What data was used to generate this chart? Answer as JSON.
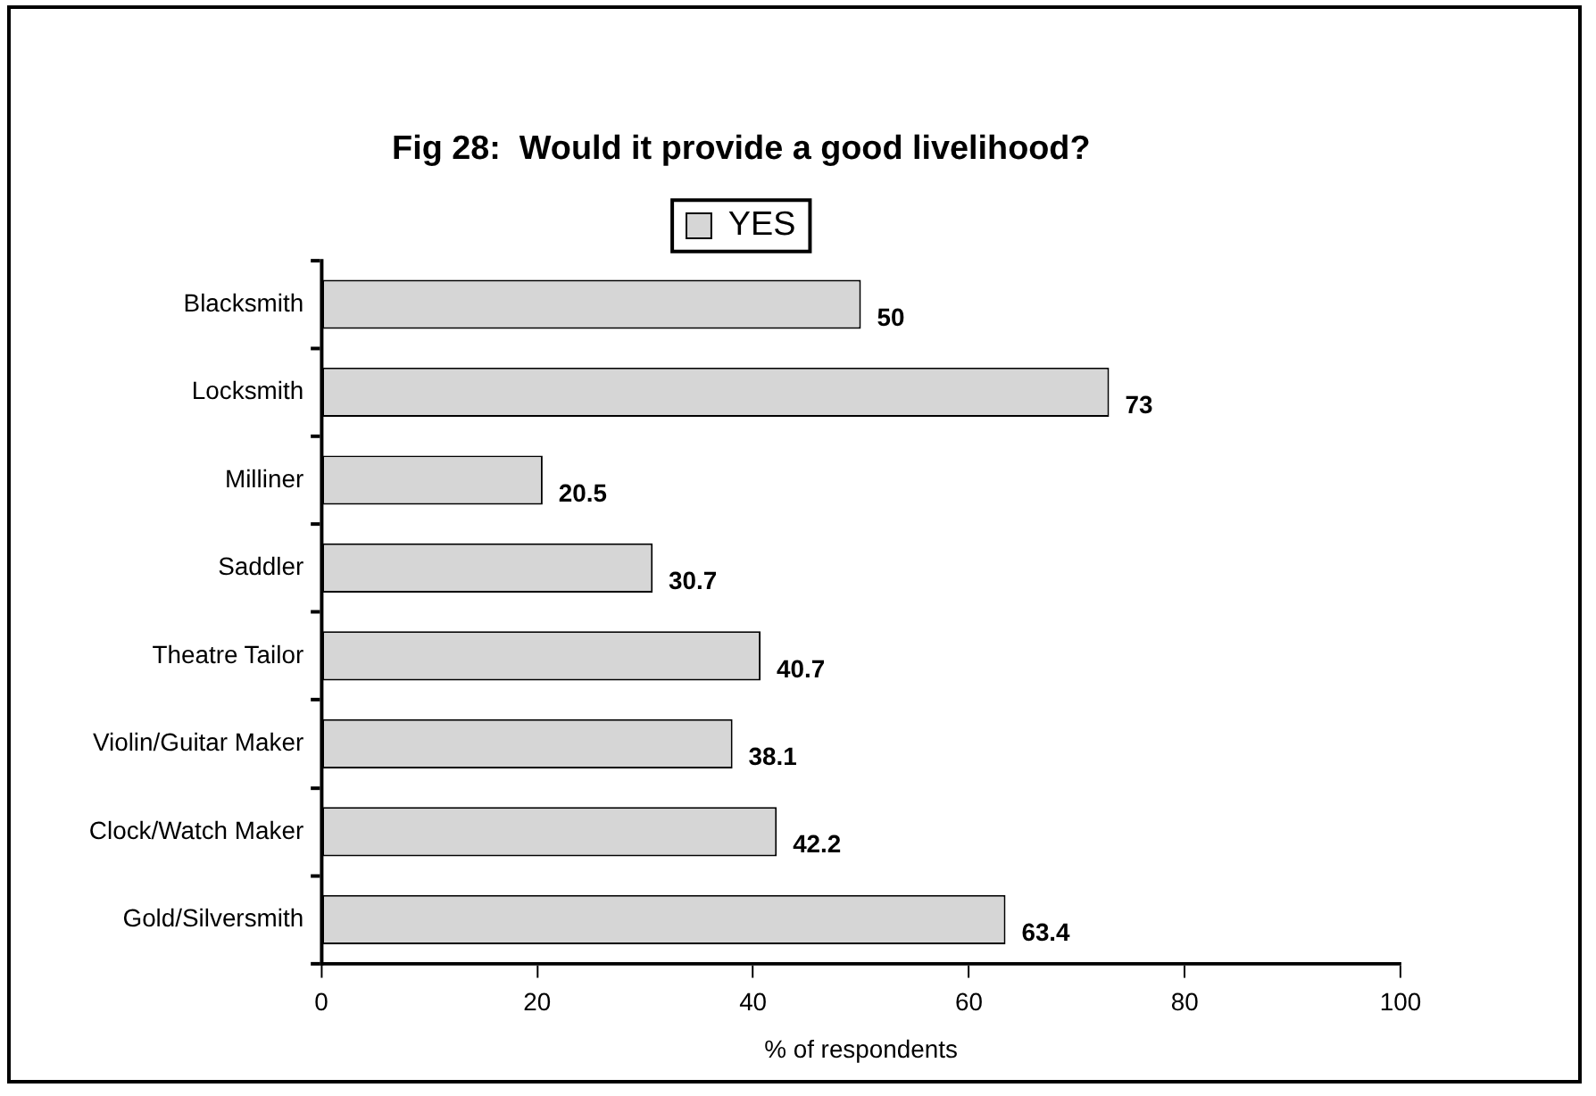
{
  "chart_data": {
    "type": "bar",
    "orientation": "horizontal",
    "title": "Fig 28:  Would it provide a good livelihood?",
    "xlabel": "% of respondents",
    "categories": [
      "Blacksmith",
      "Locksmith",
      "Milliner",
      "Saddler",
      "Theatre Tailor",
      "Violin/Guitar Maker",
      "Clock/Watch Maker",
      "Gold/Silversmith"
    ],
    "series": [
      {
        "name": "YES",
        "color": "#d6d6d6",
        "values": [
          50,
          73,
          20.5,
          30.7,
          40.7,
          38.1,
          42.2,
          63.4
        ]
      }
    ],
    "xlim": [
      0,
      100
    ],
    "xticks": [
      0,
      20,
      40,
      60,
      80,
      100
    ],
    "grid": false,
    "legend": "top",
    "data_labels": true
  }
}
